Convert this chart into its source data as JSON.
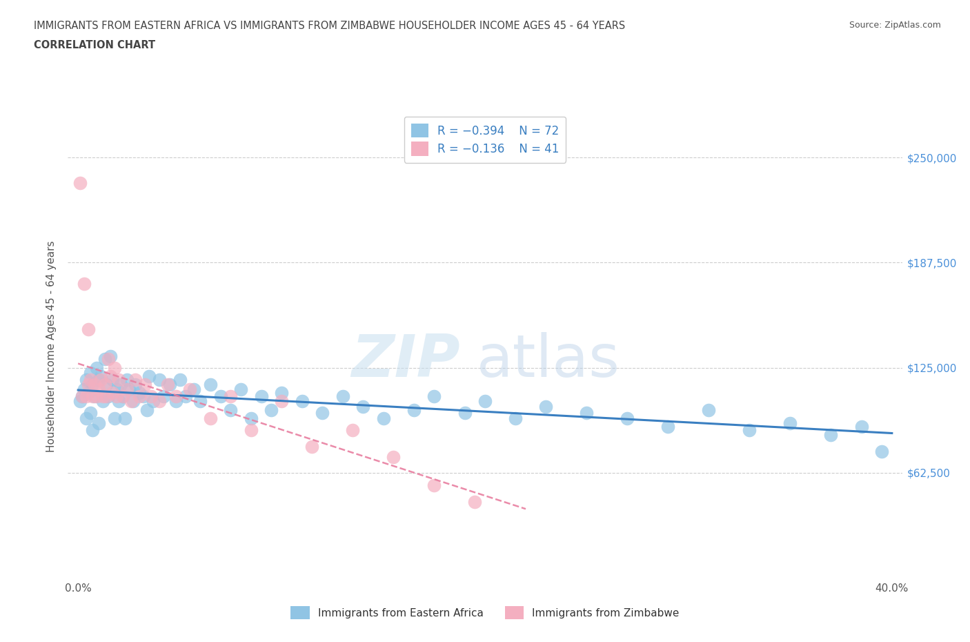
{
  "title_line1": "IMMIGRANTS FROM EASTERN AFRICA VS IMMIGRANTS FROM ZIMBABWE HOUSEHOLDER INCOME AGES 45 - 64 YEARS",
  "title_line2": "CORRELATION CHART",
  "source_text": "Source: ZipAtlas.com",
  "ylabel": "Householder Income Ages 45 - 64 years",
  "xlim_min": -0.005,
  "xlim_max": 0.405,
  "ylim_min": 0,
  "ylim_max": 275000,
  "ytick_vals": [
    62500,
    125000,
    187500,
    250000
  ],
  "ytick_labels": [
    "$62,500",
    "$125,000",
    "$187,500",
    "$250,000"
  ],
  "xtick_vals": [
    0.0,
    0.1,
    0.2,
    0.3,
    0.4
  ],
  "xtick_labels": [
    "0.0%",
    "",
    "",
    "",
    "40.0%"
  ],
  "blue_color": "#90c4e4",
  "pink_color": "#f4afc0",
  "blue_line_color": "#3a7fc1",
  "pink_line_color": "#e87fa0",
  "ytick_color": "#4a90d9",
  "title_color": "#444444",
  "grid_color": "#cccccc",
  "legend_r_blue": "R = −0.394",
  "legend_n_blue": "N = 72",
  "legend_r_pink": "R = −0.136",
  "legend_n_pink": "N = 41",
  "legend_label_blue": "Immigrants from Eastern Africa",
  "legend_label_pink": "Immigrants from Zimbabwe",
  "blue_scatter_x": [
    0.001,
    0.002,
    0.003,
    0.004,
    0.004,
    0.005,
    0.006,
    0.006,
    0.007,
    0.007,
    0.008,
    0.009,
    0.01,
    0.01,
    0.011,
    0.012,
    0.013,
    0.014,
    0.015,
    0.016,
    0.017,
    0.018,
    0.019,
    0.02,
    0.021,
    0.022,
    0.023,
    0.024,
    0.025,
    0.027,
    0.028,
    0.03,
    0.032,
    0.034,
    0.035,
    0.037,
    0.04,
    0.042,
    0.045,
    0.048,
    0.05,
    0.053,
    0.057,
    0.06,
    0.065,
    0.07,
    0.075,
    0.08,
    0.085,
    0.09,
    0.095,
    0.1,
    0.11,
    0.12,
    0.13,
    0.14,
    0.15,
    0.165,
    0.175,
    0.19,
    0.2,
    0.215,
    0.23,
    0.25,
    0.27,
    0.29,
    0.31,
    0.33,
    0.35,
    0.37,
    0.385,
    0.395
  ],
  "blue_scatter_y": [
    105000,
    108000,
    112000,
    118000,
    95000,
    110000,
    122000,
    98000,
    115000,
    88000,
    108000,
    125000,
    118000,
    92000,
    120000,
    105000,
    130000,
    115000,
    108000,
    132000,
    118000,
    95000,
    112000,
    105000,
    115000,
    108000,
    95000,
    118000,
    112000,
    105000,
    115000,
    110000,
    108000,
    100000,
    120000,
    105000,
    118000,
    108000,
    115000,
    105000,
    118000,
    108000,
    112000,
    105000,
    115000,
    108000,
    100000,
    112000,
    95000,
    108000,
    100000,
    110000,
    105000,
    98000,
    108000,
    102000,
    95000,
    100000,
    108000,
    98000,
    105000,
    95000,
    102000,
    98000,
    95000,
    90000,
    100000,
    88000,
    92000,
    85000,
    90000,
    75000
  ],
  "pink_scatter_x": [
    0.001,
    0.002,
    0.003,
    0.004,
    0.005,
    0.005,
    0.006,
    0.007,
    0.008,
    0.009,
    0.01,
    0.011,
    0.012,
    0.013,
    0.014,
    0.015,
    0.016,
    0.017,
    0.018,
    0.019,
    0.02,
    0.022,
    0.024,
    0.026,
    0.028,
    0.03,
    0.033,
    0.036,
    0.04,
    0.044,
    0.048,
    0.055,
    0.065,
    0.075,
    0.085,
    0.1,
    0.115,
    0.135,
    0.155,
    0.175,
    0.195
  ],
  "pink_scatter_y": [
    235000,
    108000,
    175000,
    108000,
    148000,
    115000,
    118000,
    108000,
    115000,
    108000,
    112000,
    118000,
    108000,
    115000,
    108000,
    130000,
    120000,
    110000,
    125000,
    108000,
    118000,
    108000,
    112000,
    105000,
    118000,
    108000,
    115000,
    108000,
    105000,
    115000,
    108000,
    112000,
    95000,
    108000,
    88000,
    105000,
    78000,
    88000,
    72000,
    55000,
    45000
  ]
}
